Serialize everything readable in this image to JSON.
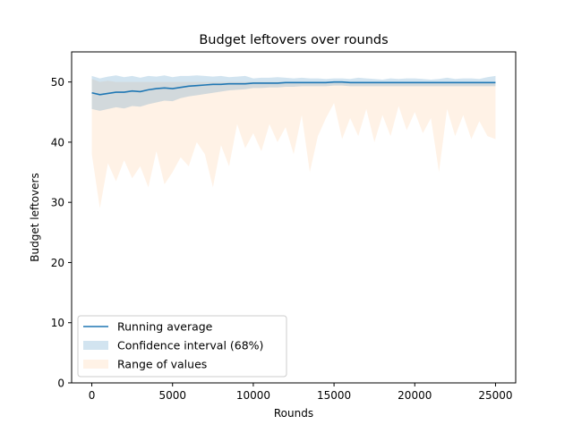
{
  "chart_data": {
    "type": "line",
    "title": "Budget leftovers over rounds",
    "xlabel": "Rounds",
    "ylabel": "Budget leftovers",
    "xlim": [
      -1250,
      26250
    ],
    "ylim": [
      0,
      55
    ],
    "x_ticks": [
      0,
      5000,
      10000,
      15000,
      20000,
      25000
    ],
    "y_ticks": [
      0,
      10,
      20,
      30,
      40,
      50
    ],
    "grid": false,
    "legend_position": "lower-left",
    "x": [
      0,
      500,
      1000,
      1500,
      2000,
      2500,
      3000,
      3500,
      4000,
      4500,
      5000,
      5500,
      6000,
      6500,
      7000,
      7500,
      8000,
      8500,
      9000,
      9500,
      10000,
      10500,
      11000,
      11500,
      12000,
      12500,
      13000,
      13500,
      14000,
      14500,
      15000,
      15500,
      16000,
      16500,
      17000,
      17500,
      18000,
      18500,
      19000,
      19500,
      20000,
      20500,
      21000,
      21500,
      22000,
      22500,
      23000,
      23500,
      24000,
      24500,
      25000
    ],
    "series": [
      {
        "name": "Running average",
        "kind": "line",
        "color": "#1f77b4",
        "values": [
          48.2,
          47.9,
          48.1,
          48.3,
          48.3,
          48.5,
          48.4,
          48.7,
          48.9,
          49.0,
          48.9,
          49.1,
          49.3,
          49.4,
          49.5,
          49.6,
          49.6,
          49.7,
          49.7,
          49.7,
          49.8,
          49.8,
          49.8,
          49.8,
          49.9,
          49.9,
          49.9,
          49.9,
          49.9,
          49.9,
          50.0,
          50.0,
          49.9,
          49.9,
          49.9,
          49.9,
          49.9,
          49.9,
          49.9,
          49.9,
          49.9,
          49.9,
          49.9,
          49.9,
          49.9,
          49.9,
          49.9,
          49.9,
          49.9,
          49.9,
          49.9
        ]
      },
      {
        "name": "Confidence interval (68%)",
        "kind": "band",
        "color": "#1f77b4",
        "opacity": 0.2,
        "upper": [
          51.0,
          50.6,
          50.9,
          51.1,
          50.8,
          51.0,
          50.7,
          51.0,
          50.9,
          51.1,
          50.8,
          51.0,
          51.0,
          51.1,
          51.0,
          50.9,
          51.0,
          50.8,
          50.9,
          51.0,
          50.6,
          50.7,
          50.7,
          50.8,
          50.7,
          50.6,
          50.7,
          50.6,
          50.6,
          50.5,
          50.6,
          50.6,
          50.5,
          50.7,
          50.6,
          50.5,
          50.4,
          50.6,
          50.5,
          50.6,
          50.6,
          50.5,
          50.4,
          50.5,
          50.7,
          50.5,
          50.6,
          50.6,
          50.5,
          50.8,
          51.0
        ],
        "lower": [
          45.5,
          45.2,
          45.5,
          45.8,
          45.6,
          46.0,
          45.9,
          46.3,
          46.6,
          46.9,
          46.8,
          47.3,
          47.6,
          47.8,
          48.0,
          48.2,
          48.4,
          48.6,
          48.7,
          48.8,
          49.0,
          49.0,
          49.1,
          49.1,
          49.2,
          49.2,
          49.3,
          49.3,
          49.3,
          49.3,
          49.4,
          49.4,
          49.3,
          49.3,
          49.3,
          49.3,
          49.3,
          49.3,
          49.3,
          49.3,
          49.3,
          49.3,
          49.3,
          49.3,
          49.3,
          49.3,
          49.3,
          49.3,
          49.3,
          49.3,
          49.3
        ]
      },
      {
        "name": "Range of values",
        "kind": "band",
        "color": "#ff7f0e",
        "opacity": 0.1,
        "upper": [
          50.5,
          50.0,
          50.2,
          50.0,
          50.0,
          50.0,
          50.0,
          50.0,
          50.0,
          50.0,
          50.0,
          50.0,
          50.0,
          50.0,
          50.0,
          50.0,
          50.0,
          50.0,
          50.0,
          50.0,
          50.0,
          50.0,
          50.0,
          50.0,
          50.0,
          50.0,
          50.0,
          50.0,
          50.0,
          50.0,
          50.0,
          50.0,
          50.0,
          50.0,
          50.0,
          50.0,
          50.0,
          50.0,
          50.0,
          50.0,
          50.0,
          50.0,
          50.0,
          50.0,
          50.0,
          50.0,
          50.0,
          50.0,
          50.0,
          50.0,
          50.0
        ],
        "lower": [
          38.0,
          29.0,
          36.5,
          33.5,
          37.0,
          34.0,
          36.0,
          32.5,
          38.5,
          33.0,
          35.0,
          37.5,
          36.0,
          40.0,
          38.0,
          32.5,
          39.5,
          36.0,
          43.0,
          39.0,
          41.5,
          38.5,
          43.0,
          40.0,
          42.5,
          38.0,
          44.5,
          35.0,
          41.0,
          44.0,
          46.5,
          40.5,
          44.0,
          41.0,
          45.5,
          40.0,
          44.5,
          41.0,
          46.0,
          42.0,
          45.0,
          41.5,
          44.0,
          35.0,
          45.5,
          41.0,
          44.5,
          40.5,
          43.5,
          41.0,
          40.5
        ]
      }
    ]
  }
}
